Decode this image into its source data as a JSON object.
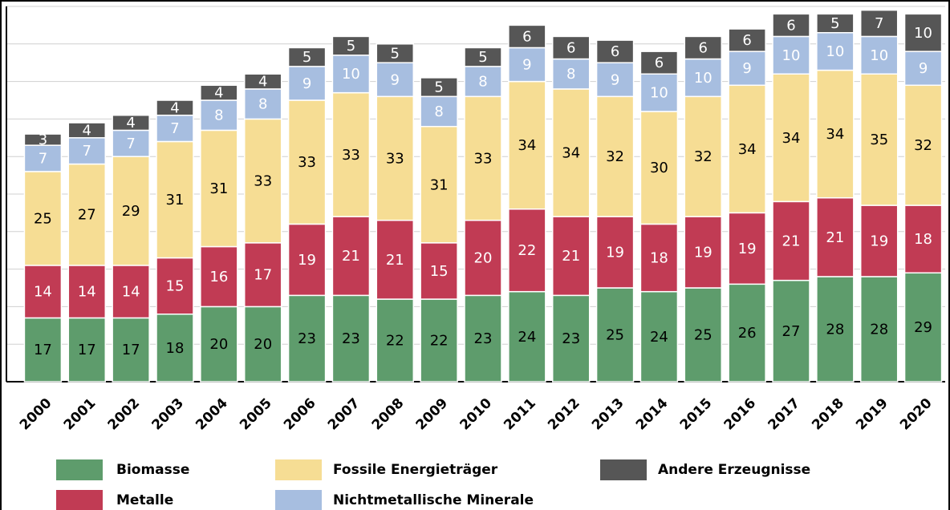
{
  "chart_data": {
    "type": "stacked_bar",
    "categories": [
      "2000",
      "2001",
      "2002",
      "2003",
      "2004",
      "2005",
      "2006",
      "2007",
      "2008",
      "2009",
      "2010",
      "2011",
      "2012",
      "2013",
      "2014",
      "2015",
      "2016",
      "2017",
      "2018",
      "2019",
      "2020"
    ],
    "series": [
      {
        "name": "Biomasse",
        "color": "#5e9c6c",
        "values": [
          17,
          17,
          17,
          18,
          20,
          20,
          23,
          23,
          22,
          22,
          23,
          24,
          23,
          25,
          24,
          25,
          26,
          27,
          28,
          28,
          29
        ]
      },
      {
        "name": "Metalle",
        "color": "#c13b54",
        "values": [
          14,
          14,
          14,
          15,
          16,
          17,
          19,
          21,
          21,
          15,
          20,
          22,
          21,
          19,
          18,
          19,
          19,
          21,
          21,
          19,
          18
        ]
      },
      {
        "name": "Fossile Energieträger",
        "color": "#f6dd94",
        "values": [
          25,
          27,
          29,
          31,
          31,
          33,
          33,
          33,
          33,
          31,
          33,
          34,
          34,
          32,
          30,
          32,
          34,
          34,
          34,
          35,
          32
        ]
      },
      {
        "name": "Nichtmetallische Minerale",
        "color": "#a7bee0",
        "values": [
          7,
          7,
          7,
          7,
          8,
          8,
          9,
          10,
          9,
          8,
          8,
          9,
          8,
          9,
          10,
          10,
          9,
          10,
          10,
          10,
          9
        ]
      },
      {
        "name": "Andere Erzeugnisse",
        "color": "#565656",
        "values": [
          3,
          4,
          4,
          4,
          4,
          4,
          5,
          5,
          5,
          5,
          5,
          6,
          6,
          6,
          6,
          6,
          6,
          6,
          5,
          7,
          10
        ]
      }
    ],
    "ylim": [
      0,
      100
    ],
    "yticks": [
      0,
      10,
      20,
      30,
      40,
      50,
      60,
      70,
      80,
      90,
      100
    ],
    "grid": true
  }
}
